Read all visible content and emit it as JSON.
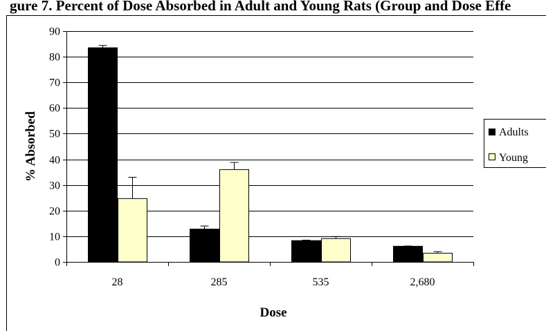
{
  "chart_data": {
    "type": "bar",
    "title": "gure 7. Percent of Dose Absorbed in Adult and Young Rats (Group and Dose Effe",
    "xlabel": "Dose",
    "ylabel": "% Absorbed",
    "categories": [
      "28",
      "285",
      "535",
      "2,680"
    ],
    "ylim": [
      0,
      90
    ],
    "yticks": [
      0,
      10,
      20,
      30,
      40,
      50,
      60,
      70,
      80,
      90
    ],
    "grid": true,
    "legend_position": "right",
    "series": [
      {
        "name": "Adults",
        "color": "#000000",
        "values": [
          83.5,
          12.8,
          8.3,
          6.1
        ],
        "error_upper": [
          84.4,
          14.0,
          8.5,
          6.2
        ]
      },
      {
        "name": "Young",
        "color": "#ffffcc",
        "values": [
          24.7,
          36.0,
          9.1,
          3.4
        ],
        "error_upper": [
          33.0,
          38.8,
          9.9,
          4.0
        ]
      }
    ]
  }
}
